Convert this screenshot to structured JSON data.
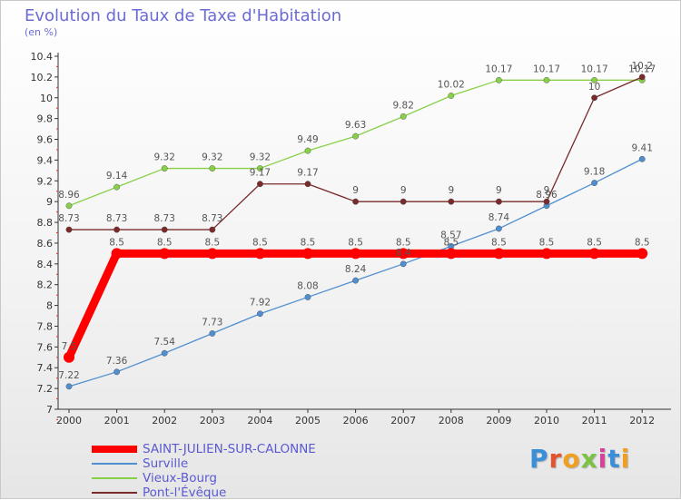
{
  "title": "Evolution du Taux de Taxe d'Habitation",
  "subtitle": "(en %)",
  "brand": "Proxiti",
  "chart_data": {
    "type": "line",
    "x": [
      "2000",
      "2001",
      "2002",
      "2003",
      "2004",
      "2005",
      "2006",
      "2007",
      "2008",
      "2009",
      "2010",
      "2011",
      "2012"
    ],
    "ylim": [
      7,
      10.4
    ],
    "yticks": [
      "7",
      "7.2",
      "7.4",
      "7.6",
      "7.8",
      "8",
      "8.2",
      "8.4",
      "8.6",
      "8.8",
      "9",
      "9.2",
      "9.4",
      "9.6",
      "9.8",
      "10",
      "10.2",
      "10.4"
    ],
    "grid": false,
    "legend_position": "bottom-left",
    "series": [
      {
        "name": "SAINT-JULIEN-SUR-CALONNE",
        "color": "#ff0000",
        "values": [
          7.5,
          8.5,
          8.5,
          8.5,
          8.5,
          8.5,
          8.5,
          8.5,
          8.5,
          8.5,
          8.5,
          8.5,
          8.5
        ],
        "labels": [
          "7.5",
          "8.5",
          "8.5",
          "8.5",
          "8.5",
          "8.5",
          "8.5",
          "8.5",
          "8.5",
          "8.5",
          "8.5",
          "8.5",
          "8.5"
        ]
      },
      {
        "name": "Surville",
        "color": "#4f8fcf",
        "values": [
          7.22,
          7.36,
          7.54,
          7.73,
          7.92,
          8.08,
          8.24,
          8.4,
          8.57,
          8.74,
          8.96,
          9.18,
          9.41
        ],
        "labels": [
          "7.22",
          "7.36",
          "7.54",
          "7.73",
          "7.92",
          "8.08",
          "8.24",
          "8.4",
          "8.57",
          "8.74",
          "8.96",
          "9.18",
          "9.41"
        ]
      },
      {
        "name": "Vieux-Bourg",
        "color": "#88d048",
        "values": [
          8.96,
          9.14,
          9.32,
          9.32,
          9.32,
          9.49,
          9.63,
          9.82,
          10.02,
          10.17,
          10.17,
          10.17,
          10.17
        ],
        "labels": [
          "8.96",
          "9.14",
          "9.32",
          "9.32",
          "9.32",
          "9.49",
          "9.63",
          "9.82",
          "10.02",
          "10.17",
          "10.17",
          "10.17",
          "10.17"
        ]
      },
      {
        "name": "Pont-l'Évêque",
        "color": "#7a2a2a",
        "values": [
          8.73,
          8.73,
          8.73,
          8.73,
          9.17,
          9.17,
          9,
          9,
          9,
          9,
          9,
          10,
          10.2
        ],
        "labels": [
          "8.73",
          "8.73",
          "8.73",
          "8.73",
          "9.17",
          "9.17",
          "9",
          "9",
          "9",
          "9",
          "9",
          "10",
          "10.2"
        ]
      }
    ]
  }
}
